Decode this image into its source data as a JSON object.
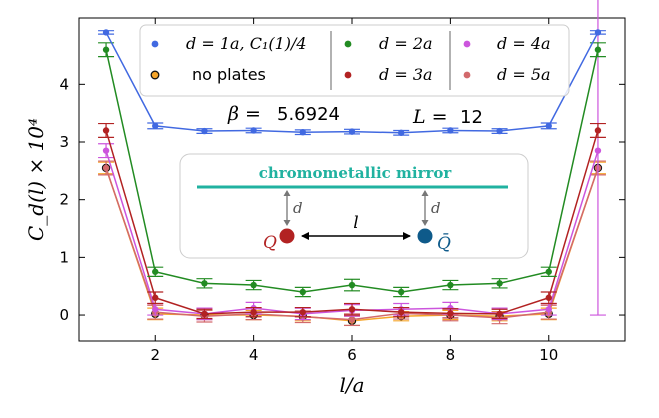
{
  "chart_data": {
    "type": "line",
    "xlabel": "l/a",
    "ylabel": "C_d(l) × 10^4",
    "xlim": [
      0.45,
      11.55
    ],
    "ylim": [
      -0.45,
      5.15
    ],
    "xticks": [
      2,
      4,
      6,
      8,
      10
    ],
    "yticks": [
      0,
      1,
      2,
      3,
      4
    ],
    "grid": false,
    "legend_position": "top",
    "x": [
      1,
      2,
      3,
      4,
      5,
      6,
      7,
      8,
      9,
      10,
      11
    ],
    "series": [
      {
        "name": "d = 1a, C1(1)/4",
        "color": "#4169e1",
        "values": [
          4.9,
          3.28,
          3.19,
          3.2,
          3.17,
          3.18,
          3.16,
          3.2,
          3.19,
          3.28,
          4.9
        ],
        "errors": [
          0.03,
          0.05,
          0.04,
          0.04,
          0.04,
          0.04,
          0.04,
          0.04,
          0.04,
          0.05,
          0.03
        ]
      },
      {
        "name": "d = 2a",
        "color": "#228b22",
        "values": [
          4.6,
          0.75,
          0.55,
          0.52,
          0.4,
          0.52,
          0.4,
          0.52,
          0.55,
          0.75,
          4.6
        ],
        "errors": [
          0.12,
          0.08,
          0.08,
          0.08,
          0.08,
          0.1,
          0.08,
          0.08,
          0.08,
          0.08,
          0.12
        ]
      },
      {
        "name": "d = 3a",
        "color": "#b22222",
        "values": [
          3.2,
          0.3,
          0.02,
          0.05,
          0.05,
          0.1,
          0.05,
          0.03,
          0.02,
          0.3,
          3.2
        ],
        "errors": [
          0.12,
          0.1,
          0.08,
          0.08,
          0.08,
          0.1,
          0.08,
          0.08,
          0.08,
          0.1,
          0.12
        ]
      },
      {
        "name": "d = 4a",
        "color": "#cc55dd",
        "values": [
          2.85,
          0.1,
          0.02,
          0.12,
          0.02,
          0.08,
          0.1,
          0.12,
          0.02,
          0.1,
          2.85
        ],
        "errors": [
          0.12,
          0.1,
          0.1,
          0.1,
          0.1,
          0.1,
          0.1,
          0.1,
          0.1,
          0.1,
          2.85
        ]
      },
      {
        "name": "d = 5a",
        "color": "#d2696c",
        "values": [
          2.55,
          0.05,
          -0.02,
          0.02,
          -0.03,
          -0.08,
          0.03,
          0.0,
          -0.05,
          0.05,
          2.55
        ],
        "errors": [
          0.12,
          0.12,
          0.1,
          0.1,
          0.1,
          0.1,
          0.1,
          0.1,
          0.1,
          0.12,
          0.12
        ]
      },
      {
        "name": "no plates",
        "color": "#f5a52a",
        "edge": "#111111",
        "values": [
          2.55,
          0.02,
          0.0,
          0.0,
          -0.02,
          -0.1,
          -0.02,
          0.0,
          -0.02,
          0.02,
          2.55
        ],
        "errors": [
          0.1,
          0.1,
          0.08,
          0.08,
          0.08,
          0.08,
          0.08,
          0.08,
          0.08,
          0.1,
          0.1
        ]
      }
    ],
    "annotations": {
      "beta_label": "β =",
      "beta_value": "5.6924",
      "L_label": "L =",
      "L_value": "12",
      "mirror_label": "chromometallic mirror",
      "separation_label": "l",
      "distance_label": "d",
      "quark_label": "Q",
      "antiquark_label": "Q̄"
    },
    "legend_labels": {
      "d1": "d = 1a, C₁(1)/4",
      "no_plates": "no plates",
      "d2": "d = 2a",
      "d3": "d = 3a",
      "d4": "d = 4a",
      "d5": "d = 5a"
    },
    "axis_labels": {
      "xlabel_text": "l/a",
      "ylabel_text": "C_d(l) × 10⁴"
    },
    "colors": {
      "mirror": "#20b2a0",
      "quark": "#b22222",
      "antiquark": "#0e5a8a",
      "arrow": "#777777"
    }
  }
}
